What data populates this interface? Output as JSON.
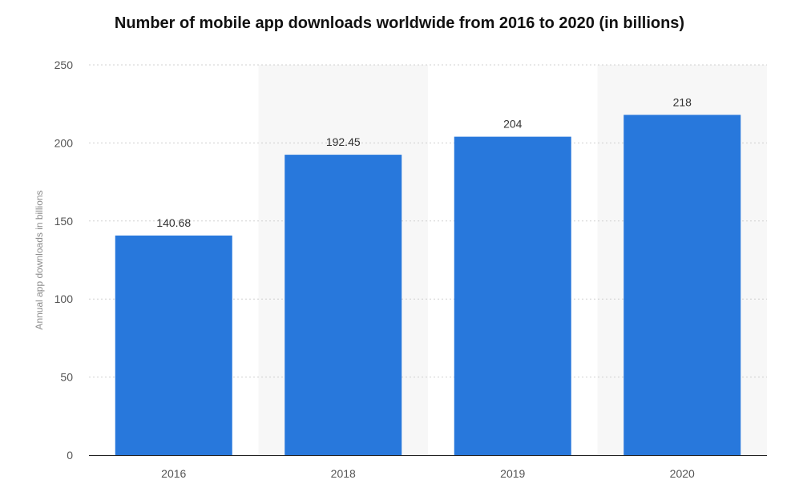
{
  "chart_data": {
    "type": "bar",
    "title": "Number of mobile app downloads worldwide from 2016 to 2020 (in billions)",
    "xlabel": "",
    "ylabel": "Annual app downloads in billions",
    "categories": [
      "2016",
      "2018",
      "2019",
      "2020"
    ],
    "values": [
      140.68,
      192.45,
      204,
      218
    ],
    "data_labels": [
      "140.68",
      "192.45",
      "204",
      "218"
    ],
    "ylim": [
      0,
      250
    ],
    "yticks": [
      0,
      50,
      100,
      150,
      200,
      250
    ],
    "ytick_labels": [
      "0",
      "50",
      "100",
      "150",
      "200",
      "250"
    ],
    "grid": true,
    "grid_style": "dotted",
    "legend": "none",
    "bar_color": "#2878dc",
    "band_color": "#f7f7f7",
    "grid_color": "#d0d0d0",
    "axis_color": "#222222"
  }
}
